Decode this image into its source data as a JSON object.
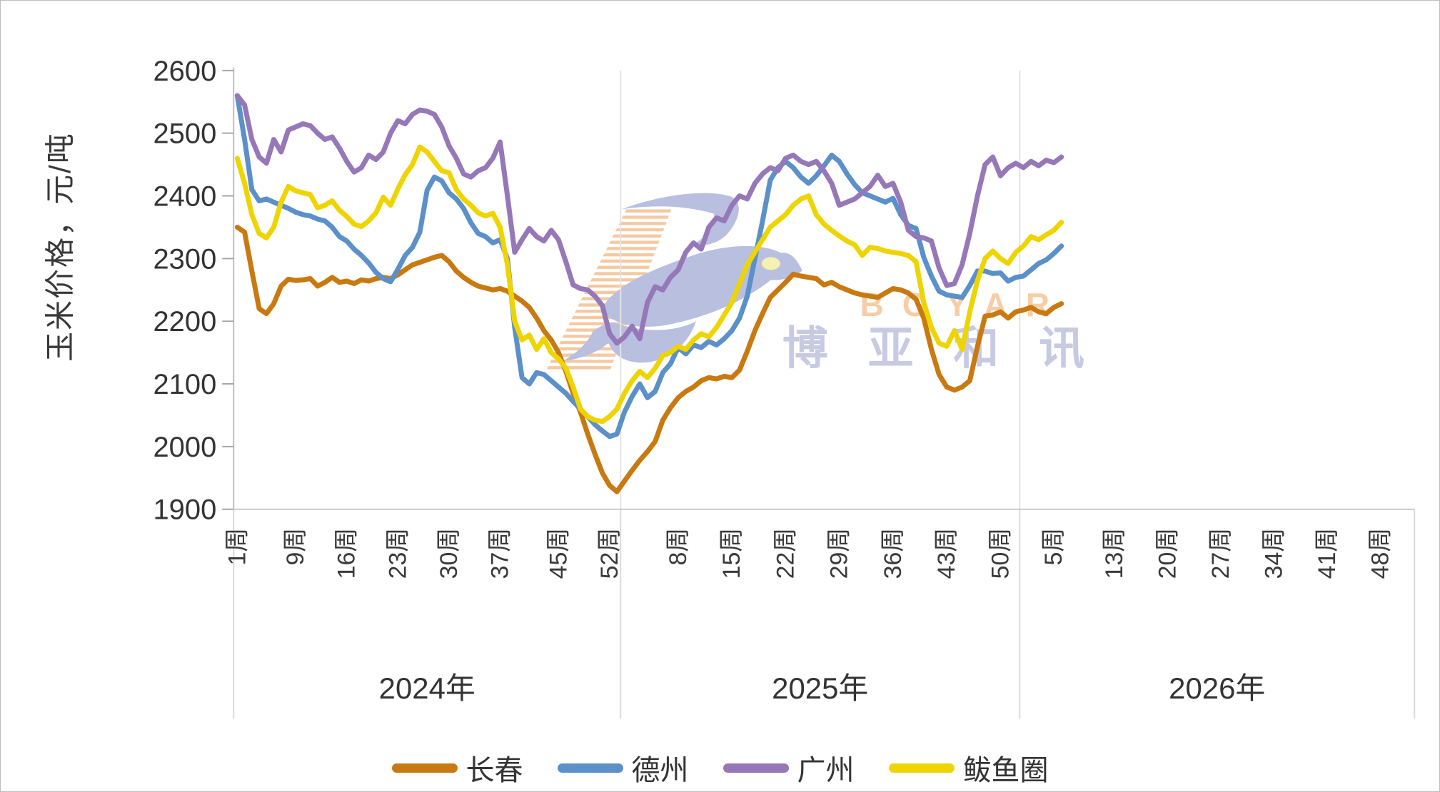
{
  "chart_data": {
    "type": "line",
    "title": "",
    "ylabel": "玉米价格，元/吨",
    "xlabel": "",
    "ylim": [
      1900,
      2600
    ],
    "ytick_step": 100,
    "y_tick_labels": [
      "1900",
      "2000",
      "2100",
      "2200",
      "2300",
      "2400",
      "2500",
      "2600"
    ],
    "grid": "off",
    "legend_position": "bottom",
    "year_groups": [
      {
        "label": "2024年",
        "weeks": 53,
        "tick_weeks": [
          1,
          9,
          16,
          23,
          30,
          37,
          45,
          52
        ],
        "tick_labels": [
          "1周",
          "9周",
          "16周",
          "23周",
          "30周",
          "37周",
          "45周",
          "52周"
        ]
      },
      {
        "label": "2025年",
        "weeks": 52,
        "tick_weeks": [
          8,
          15,
          22,
          29,
          36,
          43,
          50
        ],
        "tick_labels": [
          "8周",
          "15周",
          "22周",
          "29周",
          "36周",
          "43周",
          "50周"
        ]
      },
      {
        "label": "2026年",
        "weeks": 52,
        "tick_weeks": [
          5,
          13,
          20,
          27,
          34,
          41,
          48
        ],
        "tick_labels": [
          "5周",
          "13周",
          "20周",
          "27周",
          "34周",
          "41周",
          "48周"
        ]
      }
    ],
    "series": [
      {
        "name": "长春",
        "key": "changchun",
        "color": "#C87A11",
        "values": {
          "2024": [
            2350,
            2342,
            2280,
            2220,
            2212,
            2228,
            2256,
            2267,
            2265,
            2266,
            2268,
            2256,
            2262,
            2270,
            2262,
            2264,
            2260,
            2266,
            2264,
            2268,
            2270,
            2268,
            2274,
            2282,
            2290,
            2294,
            2298,
            2302,
            2305,
            2295,
            2280,
            2270,
            2262,
            2256,
            2253,
            2250,
            2252,
            2248,
            2240,
            2232,
            2222,
            2205,
            2185,
            2170,
            2150,
            2120,
            2085,
            2055,
            2020,
            1988,
            1958,
            1938,
            1928
          ],
          "2025": [
            1945,
            1962,
            1978,
            1992,
            2008,
            2042,
            2062,
            2078,
            2088,
            2095,
            2105,
            2110,
            2108,
            2112,
            2110,
            2122,
            2152,
            2185,
            2212,
            2238,
            2250,
            2262,
            2275,
            2272,
            2270,
            2268,
            2258,
            2262,
            2255,
            2250,
            2245,
            2242,
            2240,
            2238,
            2245,
            2252,
            2250,
            2245,
            2235,
            2205,
            2155,
            2115,
            2095,
            2090,
            2095,
            2105,
            2160,
            2208,
            2210,
            2215,
            2205,
            2215
          ],
          "2026": [
            2218,
            2222,
            2215,
            2212,
            2222,
            2228
          ]
        }
      },
      {
        "name": "德州",
        "key": "dezhou",
        "color": "#5B90C9",
        "values": {
          "2024": [
            2560,
            2490,
            2410,
            2392,
            2395,
            2390,
            2385,
            2380,
            2374,
            2370,
            2368,
            2363,
            2360,
            2350,
            2335,
            2328,
            2315,
            2305,
            2293,
            2278,
            2268,
            2263,
            2283,
            2305,
            2318,
            2342,
            2409,
            2430,
            2424,
            2405,
            2395,
            2380,
            2357,
            2340,
            2335,
            2325,
            2330,
            2300,
            2190,
            2110,
            2100,
            2118,
            2115,
            2105,
            2095,
            2085,
            2072,
            2060,
            2048,
            2035,
            2025,
            2016,
            2020
          ],
          "2025": [
            2055,
            2080,
            2100,
            2078,
            2088,
            2118,
            2132,
            2158,
            2148,
            2162,
            2158,
            2168,
            2162,
            2172,
            2185,
            2205,
            2240,
            2300,
            2360,
            2425,
            2445,
            2455,
            2445,
            2430,
            2420,
            2432,
            2448,
            2465,
            2455,
            2435,
            2418,
            2405,
            2400,
            2395,
            2390,
            2396,
            2370,
            2353,
            2348,
            2302,
            2272,
            2248,
            2242,
            2240,
            2238,
            2257,
            2280,
            2280,
            2276,
            2277,
            2264,
            2270
          ],
          "2026": [
            2272,
            2282,
            2292,
            2298,
            2308,
            2320
          ]
        }
      },
      {
        "name": "广州",
        "key": "guangzhou",
        "color": "#9678B8",
        "values": {
          "2024": [
            2560,
            2545,
            2490,
            2462,
            2452,
            2490,
            2470,
            2505,
            2510,
            2515,
            2512,
            2500,
            2490,
            2494,
            2476,
            2455,
            2438,
            2445,
            2465,
            2458,
            2470,
            2500,
            2520,
            2515,
            2530,
            2537,
            2535,
            2530,
            2510,
            2480,
            2460,
            2435,
            2430,
            2440,
            2445,
            2460,
            2486,
            2400,
            2310,
            2330,
            2348,
            2335,
            2328,
            2345,
            2330,
            2295,
            2258,
            2252,
            2250,
            2240,
            2225,
            2180,
            2165
          ],
          "2025": [
            2175,
            2192,
            2172,
            2230,
            2255,
            2250,
            2270,
            2282,
            2310,
            2325,
            2315,
            2350,
            2365,
            2360,
            2385,
            2400,
            2395,
            2420,
            2435,
            2445,
            2440,
            2460,
            2465,
            2455,
            2450,
            2455,
            2440,
            2420,
            2385,
            2390,
            2395,
            2405,
            2415,
            2433,
            2415,
            2420,
            2390,
            2345,
            2335,
            2333,
            2328,
            2285,
            2257,
            2260,
            2290,
            2340,
            2400,
            2450,
            2462,
            2432,
            2445,
            2452
          ],
          "2026": [
            2445,
            2455,
            2448,
            2457,
            2453,
            2462
          ]
        }
      },
      {
        "name": "鲅鱼圈",
        "key": "bayuquan",
        "color": "#EED400",
        "values": {
          "2024": [
            2460,
            2420,
            2370,
            2340,
            2333,
            2350,
            2390,
            2415,
            2408,
            2405,
            2402,
            2381,
            2385,
            2392,
            2377,
            2367,
            2355,
            2351,
            2360,
            2373,
            2398,
            2385,
            2411,
            2434,
            2450,
            2478,
            2470,
            2455,
            2440,
            2437,
            2410,
            2395,
            2385,
            2373,
            2368,
            2372,
            2350,
            2290,
            2200,
            2170,
            2178,
            2155,
            2172,
            2150,
            2140,
            2125,
            2095,
            2060,
            2048,
            2042,
            2040,
            2048,
            2060
          ],
          "2025": [
            2085,
            2105,
            2120,
            2110,
            2125,
            2145,
            2150,
            2160,
            2155,
            2170,
            2180,
            2175,
            2190,
            2210,
            2230,
            2260,
            2290,
            2310,
            2330,
            2350,
            2360,
            2370,
            2385,
            2395,
            2400,
            2370,
            2355,
            2345,
            2336,
            2328,
            2322,
            2305,
            2318,
            2316,
            2312,
            2310,
            2308,
            2305,
            2295,
            2230,
            2190,
            2165,
            2160,
            2185,
            2155,
            2215,
            2265,
            2300,
            2312,
            2300,
            2292,
            2310
          ],
          "2026": [
            2320,
            2335,
            2330,
            2338,
            2345,
            2358
          ]
        }
      }
    ]
  },
  "legend": {
    "items": [
      {
        "label": "长春",
        "color": "#C87A11"
      },
      {
        "label": "德州",
        "color": "#5B90C9"
      },
      {
        "label": "广州",
        "color": "#9678B8"
      },
      {
        "label": "鲅鱼圈",
        "color": "#EED400"
      }
    ]
  },
  "watermark": {
    "latin": "BOYAR",
    "cjk": "博亚和讯",
    "colors": {
      "latin": "#F6CBA2",
      "cjk": "#BCC3DF",
      "bird": "#B5BCDE",
      "stripes": "#F4C79E",
      "eye": "#F5F1AC"
    }
  }
}
